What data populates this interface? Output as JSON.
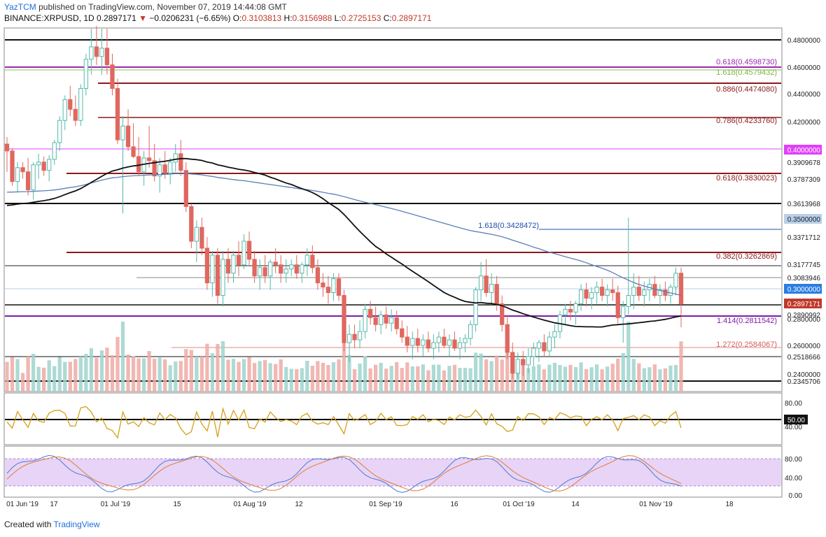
{
  "header": {
    "author": "YazTCM",
    "published_text": "published on TradingView.com, November 07, 2019 14:44:08 GMT",
    "symbol": "BINANCE:XRPUSD, 1D",
    "last": "0.2897171",
    "change": "−0.0206231 (−6.65%)",
    "open_label": "O:",
    "open": "0.3103813",
    "high_label": "H:",
    "high": "0.3156988",
    "low_label": "L:",
    "low": "0.2725153",
    "close_label": "C:",
    "close": "0.2897171"
  },
  "footer": {
    "created_with": "Created with",
    "brand": "TradingView"
  },
  "colors": {
    "up": "#53b9a9",
    "down": "#e0675f",
    "up_vol": "#9fd3cc",
    "down_vol": "#eeaaa5"
  },
  "chart_data": {
    "type": "candlestick",
    "price_axis_ticks": [
      "0.4800000",
      "0.4600000",
      "0.4400000",
      "0.4200000",
      "0.4000000",
      "0.3909678",
      "0.3787309",
      "0.3613968",
      "0.3500000",
      "0.3371712",
      "0.3177745",
      "0.3083946",
      "0.3000000",
      "0.2897171",
      "0.2890992",
      "0.2800000",
      "0.2600000",
      "0.2518666",
      "0.2400000",
      "0.2345706"
    ],
    "ylim": [
      0.2345706,
      0.48
    ],
    "x_ticks": [
      "01 Jun '19",
      "17",
      "01 Jul '19",
      "15",
      "01 Aug '19",
      "12",
      "01 Sep '19",
      "16",
      "01 Oct '19",
      "14",
      "01 Nov '19",
      "18"
    ],
    "fib_levels": [
      {
        "label": "0.618(0.4598730)",
        "value": 0.459873,
        "color": "#9c27b0"
      },
      {
        "label": "1.618(0.4579432)",
        "value": 0.4579432,
        "color": "#7cb342"
      },
      {
        "label": "0.886(0.4474080)",
        "value": 0.447408,
        "color": "#8b1a1a"
      },
      {
        "label": "0.786(0.4233760)",
        "value": 0.423376,
        "color": "#8b1a1a"
      },
      {
        "label": "0.618(0.3830023)",
        "value": 0.3830023,
        "color": "#8b1a1a"
      },
      {
        "label": "1.618(0.3428472)",
        "value": 0.3428472,
        "color": "#1e4fa8"
      },
      {
        "label": "0.382(0.3262869)",
        "value": 0.3262869,
        "color": "#8b1a1a"
      },
      {
        "label": "1.414(0.2811542)",
        "value": 0.2811542,
        "color": "#7b1fa2"
      },
      {
        "label": "1.272(0.2584067)",
        "value": 0.2584067,
        "color": "#d0605a"
      }
    ],
    "rsi": {
      "ticks": [
        "80.00",
        "50.00",
        "40.00"
      ],
      "current": "50.00",
      "color": "#d4a017"
    },
    "stoch": {
      "ticks": [
        "80.00",
        "40.00",
        "0.00"
      ]
    },
    "candles": [
      [
        0.405,
        0.41,
        0.385,
        0.4
      ],
      [
        0.4,
        0.402,
        0.375,
        0.378
      ],
      [
        0.378,
        0.392,
        0.37,
        0.388
      ],
      [
        0.388,
        0.392,
        0.38,
        0.385
      ],
      [
        0.385,
        0.395,
        0.368,
        0.372
      ],
      [
        0.372,
        0.392,
        0.365,
        0.39
      ],
      [
        0.39,
        0.398,
        0.38,
        0.392
      ],
      [
        0.392,
        0.396,
        0.382,
        0.386
      ],
      [
        0.386,
        0.397,
        0.378,
        0.394
      ],
      [
        0.394,
        0.408,
        0.39,
        0.406
      ],
      [
        0.406,
        0.425,
        0.4,
        0.422
      ],
      [
        0.422,
        0.44,
        0.415,
        0.437
      ],
      [
        0.437,
        0.447,
        0.425,
        0.43
      ],
      [
        0.43,
        0.44,
        0.418,
        0.422
      ],
      [
        0.422,
        0.448,
        0.418,
        0.445
      ],
      [
        0.445,
        0.47,
        0.44,
        0.466
      ],
      [
        0.466,
        0.488,
        0.455,
        0.475
      ],
      [
        0.475,
        0.49,
        0.462,
        0.468
      ],
      [
        0.468,
        0.488,
        0.455,
        0.474
      ],
      [
        0.474,
        0.488,
        0.455,
        0.462
      ],
      [
        0.462,
        0.47,
        0.44,
        0.445
      ],
      [
        0.445,
        0.452,
        0.405,
        0.408
      ],
      [
        0.408,
        0.425,
        0.355,
        0.418
      ],
      [
        0.418,
        0.43,
        0.4,
        0.403
      ],
      [
        0.403,
        0.42,
        0.395,
        0.396
      ],
      [
        0.396,
        0.41,
        0.382,
        0.385
      ],
      [
        0.385,
        0.4,
        0.375,
        0.395
      ],
      [
        0.395,
        0.418,
        0.388,
        0.393
      ],
      [
        0.393,
        0.405,
        0.378,
        0.382
      ],
      [
        0.382,
        0.395,
        0.37,
        0.39
      ],
      [
        0.39,
        0.4,
        0.38,
        0.384
      ],
      [
        0.384,
        0.395,
        0.376,
        0.392
      ],
      [
        0.392,
        0.405,
        0.385,
        0.398
      ],
      [
        0.398,
        0.408,
        0.382,
        0.386
      ],
      [
        0.386,
        0.392,
        0.356,
        0.36
      ],
      [
        0.36,
        0.362,
        0.33,
        0.335
      ],
      [
        0.335,
        0.35,
        0.32,
        0.345
      ],
      [
        0.345,
        0.352,
        0.325,
        0.33
      ],
      [
        0.33,
        0.338,
        0.3,
        0.305
      ],
      [
        0.305,
        0.328,
        0.295,
        0.325
      ],
      [
        0.325,
        0.33,
        0.29,
        0.296
      ],
      [
        0.296,
        0.328,
        0.288,
        0.322
      ],
      [
        0.322,
        0.33,
        0.305,
        0.312
      ],
      [
        0.312,
        0.328,
        0.305,
        0.325
      ],
      [
        0.325,
        0.335,
        0.31,
        0.318
      ],
      [
        0.318,
        0.34,
        0.315,
        0.335
      ],
      [
        0.335,
        0.342,
        0.318,
        0.322
      ],
      [
        0.322,
        0.328,
        0.305,
        0.31
      ],
      [
        0.31,
        0.322,
        0.3,
        0.316
      ],
      [
        0.316,
        0.325,
        0.305,
        0.31
      ],
      [
        0.31,
        0.322,
        0.3,
        0.32
      ],
      [
        0.32,
        0.33,
        0.312,
        0.318
      ],
      [
        0.318,
        0.325,
        0.305,
        0.312
      ],
      [
        0.312,
        0.322,
        0.305,
        0.315
      ],
      [
        0.315,
        0.322,
        0.31,
        0.318
      ],
      [
        0.318,
        0.325,
        0.308,
        0.312
      ],
      [
        0.312,
        0.32,
        0.305,
        0.318
      ],
      [
        0.318,
        0.33,
        0.31,
        0.325
      ],
      [
        0.325,
        0.332,
        0.312,
        0.316
      ],
      [
        0.316,
        0.322,
        0.3,
        0.305
      ],
      [
        0.305,
        0.312,
        0.295,
        0.302
      ],
      [
        0.302,
        0.31,
        0.29,
        0.298
      ],
      [
        0.298,
        0.312,
        0.292,
        0.308
      ],
      [
        0.308,
        0.312,
        0.292,
        0.296
      ],
      [
        0.296,
        0.3,
        0.256,
        0.262
      ],
      [
        0.262,
        0.275,
        0.248,
        0.268
      ],
      [
        0.268,
        0.275,
        0.258,
        0.264
      ],
      [
        0.264,
        0.278,
        0.258,
        0.27
      ],
      [
        0.27,
        0.29,
        0.265,
        0.286
      ],
      [
        0.286,
        0.292,
        0.275,
        0.28
      ],
      [
        0.28,
        0.288,
        0.27,
        0.275
      ],
      [
        0.275,
        0.285,
        0.268,
        0.282
      ],
      [
        0.282,
        0.288,
        0.272,
        0.276
      ],
      [
        0.276,
        0.286,
        0.27,
        0.28
      ],
      [
        0.28,
        0.285,
        0.268,
        0.272
      ],
      [
        0.272,
        0.278,
        0.262,
        0.266
      ],
      [
        0.266,
        0.274,
        0.255,
        0.26
      ],
      [
        0.26,
        0.27,
        0.25,
        0.265
      ],
      [
        0.265,
        0.272,
        0.255,
        0.26
      ],
      [
        0.26,
        0.268,
        0.252,
        0.264
      ],
      [
        0.264,
        0.27,
        0.255,
        0.258
      ],
      [
        0.258,
        0.268,
        0.25,
        0.262
      ],
      [
        0.262,
        0.27,
        0.255,
        0.266
      ],
      [
        0.266,
        0.272,
        0.258,
        0.26
      ],
      [
        0.26,
        0.268,
        0.252,
        0.264
      ],
      [
        0.264,
        0.27,
        0.256,
        0.258
      ],
      [
        0.258,
        0.266,
        0.25,
        0.262
      ],
      [
        0.262,
        0.268,
        0.255,
        0.265
      ],
      [
        0.265,
        0.278,
        0.26,
        0.275
      ],
      [
        0.275,
        0.302,
        0.27,
        0.3
      ],
      [
        0.3,
        0.32,
        0.292,
        0.31
      ],
      [
        0.31,
        0.322,
        0.295,
        0.298
      ],
      [
        0.298,
        0.312,
        0.29,
        0.304
      ],
      [
        0.304,
        0.31,
        0.285,
        0.29
      ],
      [
        0.29,
        0.296,
        0.27,
        0.275
      ],
      [
        0.275,
        0.282,
        0.25,
        0.255
      ],
      [
        0.255,
        0.262,
        0.236,
        0.24
      ],
      [
        0.24,
        0.255,
        0.236,
        0.25
      ],
      [
        0.25,
        0.256,
        0.238,
        0.246
      ],
      [
        0.246,
        0.258,
        0.24,
        0.252
      ],
      [
        0.252,
        0.262,
        0.245,
        0.258
      ],
      [
        0.258,
        0.264,
        0.248,
        0.262
      ],
      [
        0.262,
        0.268,
        0.252,
        0.256
      ],
      [
        0.256,
        0.27,
        0.252,
        0.266
      ],
      [
        0.266,
        0.275,
        0.258,
        0.27
      ],
      [
        0.27,
        0.285,
        0.265,
        0.282
      ],
      [
        0.282,
        0.29,
        0.275,
        0.286
      ],
      [
        0.286,
        0.292,
        0.278,
        0.284
      ],
      [
        0.284,
        0.292,
        0.275,
        0.29
      ],
      [
        0.29,
        0.304,
        0.285,
        0.3
      ],
      [
        0.3,
        0.305,
        0.288,
        0.294
      ],
      [
        0.294,
        0.302,
        0.286,
        0.298
      ],
      [
        0.298,
        0.306,
        0.29,
        0.302
      ],
      [
        0.302,
        0.308,
        0.292,
        0.296
      ],
      [
        0.296,
        0.304,
        0.288,
        0.3
      ],
      [
        0.3,
        0.308,
        0.292,
        0.298
      ],
      [
        0.298,
        0.303,
        0.276,
        0.28
      ],
      [
        0.28,
        0.292,
        0.262,
        0.288
      ],
      [
        0.288,
        0.352,
        0.282,
        0.296
      ],
      [
        0.296,
        0.312,
        0.286,
        0.302
      ],
      [
        0.302,
        0.31,
        0.292,
        0.296
      ],
      [
        0.296,
        0.306,
        0.288,
        0.3
      ],
      [
        0.3,
        0.308,
        0.292,
        0.304
      ],
      [
        0.304,
        0.31,
        0.294,
        0.296
      ],
      [
        0.296,
        0.304,
        0.288,
        0.3
      ],
      [
        0.3,
        0.306,
        0.292,
        0.296
      ],
      [
        0.296,
        0.304,
        0.29,
        0.302
      ],
      [
        0.302,
        0.316,
        0.296,
        0.312
      ],
      [
        0.312,
        0.316,
        0.273,
        0.29
      ]
    ]
  }
}
